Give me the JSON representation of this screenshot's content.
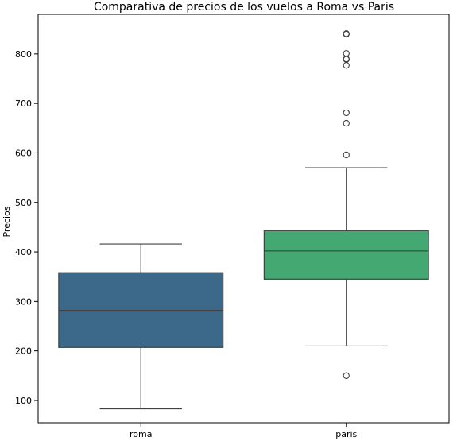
{
  "chart_data": {
    "type": "box",
    "title": "Comparativa de precios de los vuelos a Roma vs Paris",
    "xlabel": "",
    "ylabel": "Precios",
    "ylim": [
      55,
      880
    ],
    "yticks": [
      100,
      200,
      300,
      400,
      500,
      600,
      700,
      800
    ],
    "grid": false,
    "series": [
      {
        "name": "roma",
        "color": "#3c6889",
        "whisker_low": 83,
        "q1": 207,
        "median": 282,
        "q3": 358,
        "whisker_high": 416,
        "outliers": []
      },
      {
        "name": "paris",
        "color": "#44a873",
        "whisker_low": 210,
        "q1": 345,
        "median": 402,
        "q3": 443,
        "whisker_high": 570,
        "outliers": [
          150,
          596,
          660,
          681,
          777,
          789,
          790,
          801,
          840,
          841
        ]
      }
    ]
  }
}
